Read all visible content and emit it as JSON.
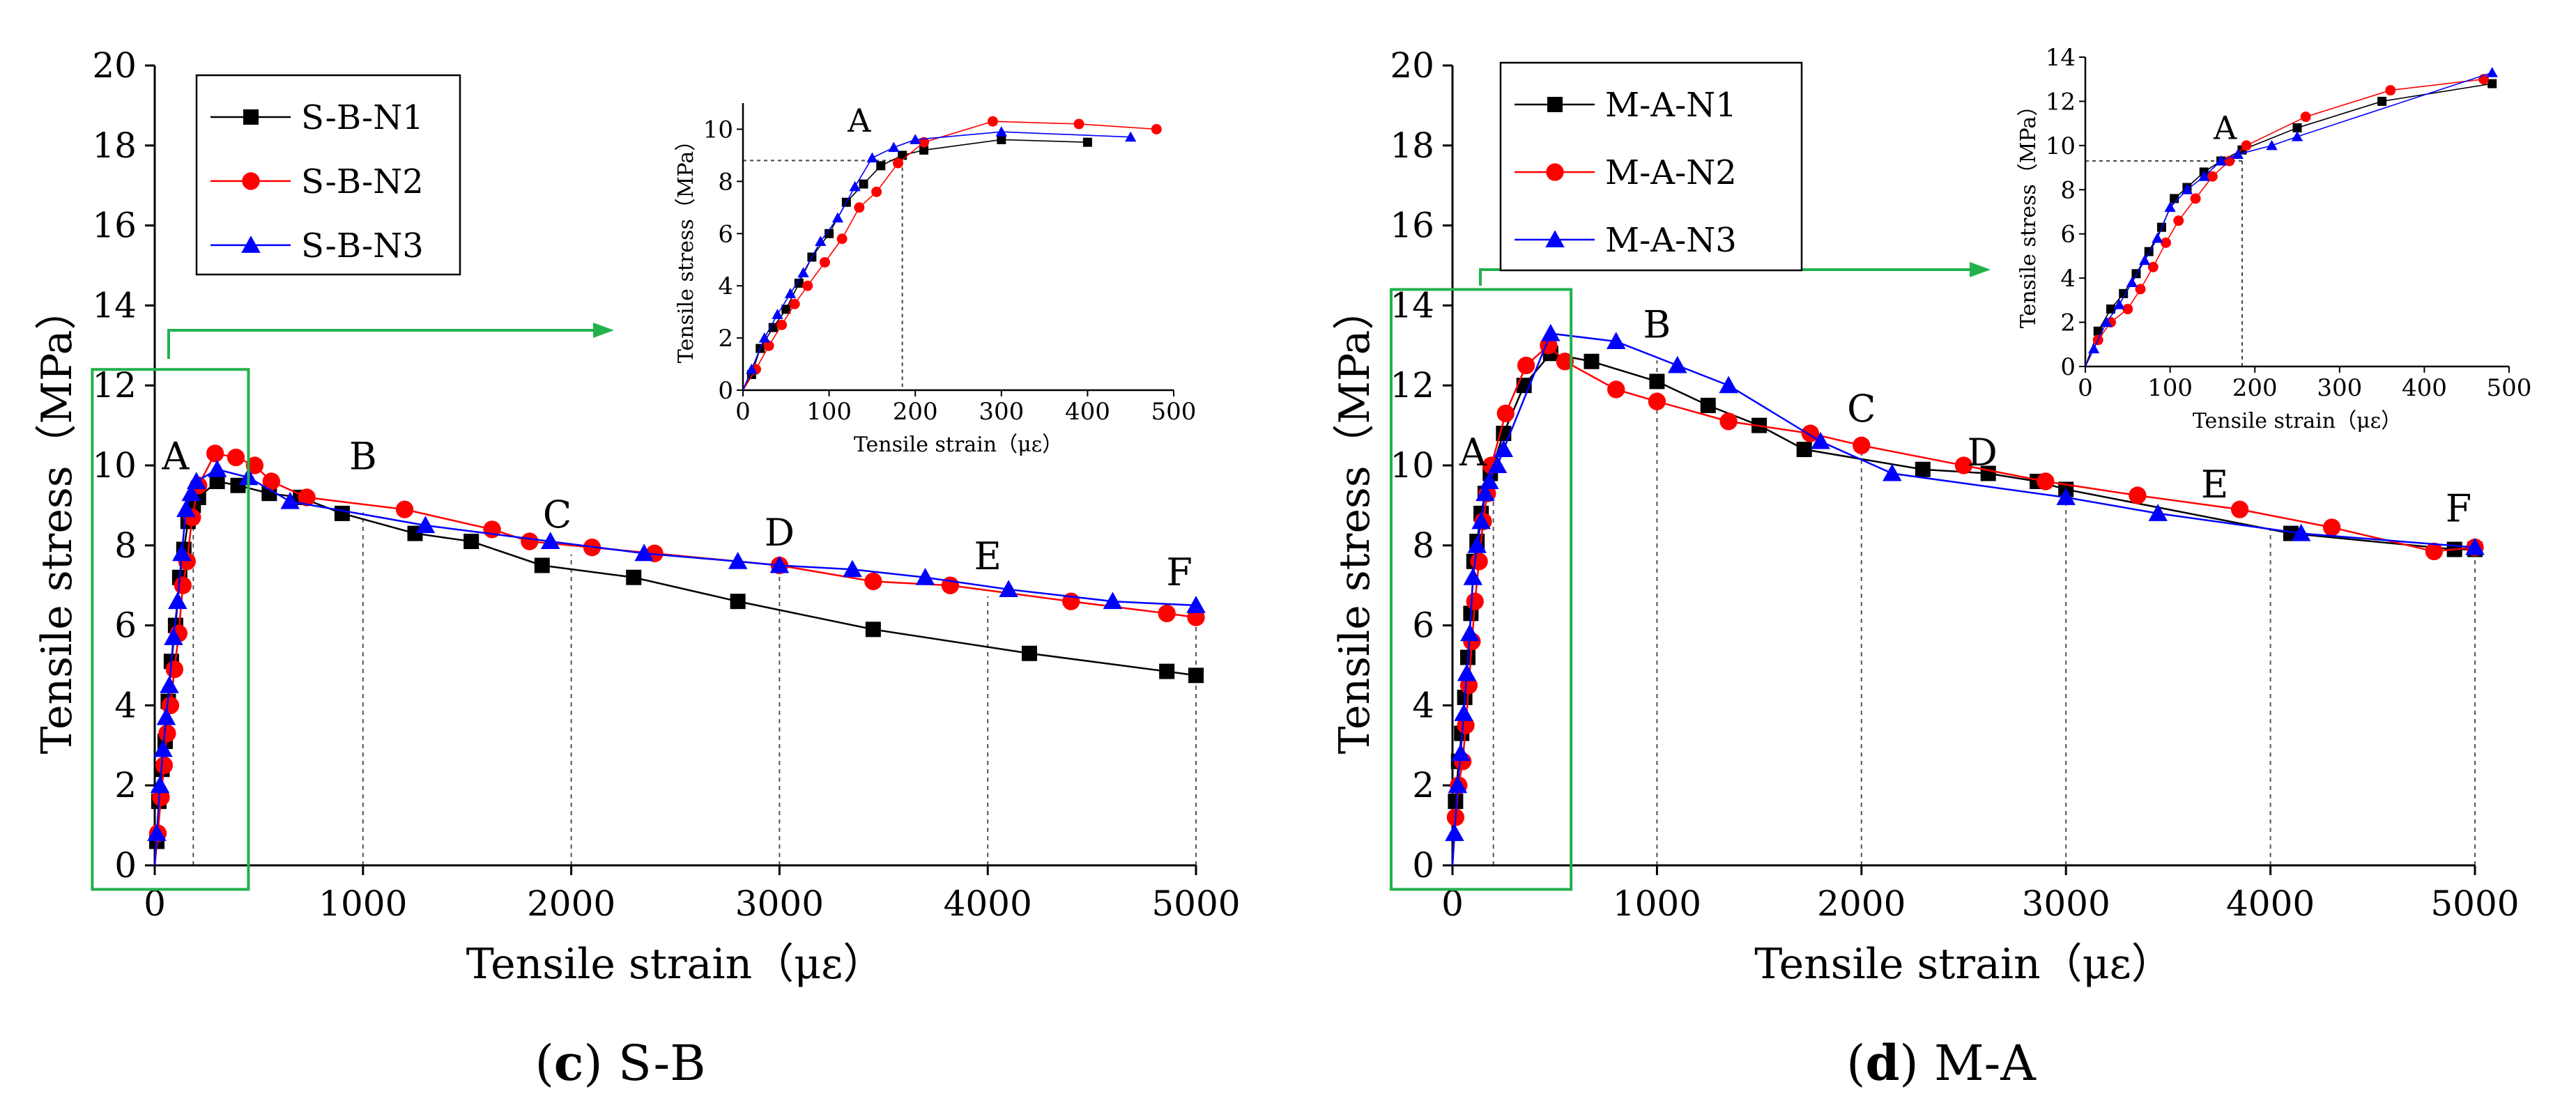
{
  "chart_data": [
    {
      "id": "c",
      "type": "line",
      "caption": {
        "letter": "c",
        "text": ") S-B"
      },
      "xlabel": "Tensile strain（με）",
      "ylabel": "Tensile stress（MPa）",
      "xlim": [
        0,
        5000
      ],
      "ylim": [
        0,
        20
      ],
      "xticks": [
        0,
        1000,
        2000,
        3000,
        4000,
        5000
      ],
      "yticks": [
        0,
        2,
        4,
        6,
        8,
        10,
        12,
        14,
        16,
        18,
        20
      ],
      "zoom_box": {
        "x": [
          -300,
          450
        ],
        "y": [
          -0.6,
          12.4
        ]
      },
      "legend": [
        "S-B-N1",
        "S-B-N2",
        "S-B-N3"
      ],
      "series": [
        {
          "name": "S-B-N1",
          "color": "#000000",
          "marker": "square",
          "x": [
            0,
            10,
            20,
            35,
            50,
            65,
            80,
            100,
            120,
            140,
            160,
            185,
            210,
            300,
            400,
            550,
            700,
            900,
            1250,
            1520,
            1860,
            2300,
            2800,
            3450,
            4200,
            4860,
            5000
          ],
          "y": [
            0,
            0.6,
            1.6,
            2.4,
            3.1,
            4.1,
            5.1,
            6.0,
            7.2,
            7.9,
            8.6,
            9.0,
            9.2,
            9.6,
            9.5,
            9.3,
            9.2,
            8.8,
            8.3,
            8.1,
            7.5,
            7.2,
            6.6,
            5.9,
            5.3,
            4.85,
            4.75
          ]
        },
        {
          "name": "S-B-N2",
          "color": "#ff0000",
          "marker": "circle",
          "x": [
            0,
            15,
            30,
            45,
            60,
            75,
            95,
            115,
            135,
            155,
            180,
            210,
            290,
            390,
            480,
            560,
            730,
            1200,
            1620,
            1800,
            2100,
            2400,
            3000,
            3450,
            3820,
            4400,
            4860,
            5000
          ],
          "y": [
            0,
            0.8,
            1.7,
            2.5,
            3.3,
            4.0,
            4.9,
            5.8,
            7.0,
            7.6,
            8.7,
            9.5,
            10.3,
            10.2,
            10.0,
            9.6,
            9.2,
            8.9,
            8.4,
            8.1,
            7.95,
            7.8,
            7.5,
            7.1,
            7.0,
            6.6,
            6.3,
            6.2
          ]
        },
        {
          "name": "S-B-N3",
          "color": "#0000ff",
          "marker": "triangle",
          "x": [
            0,
            10,
            25,
            40,
            55,
            70,
            90,
            110,
            130,
            150,
            175,
            200,
            300,
            450,
            650,
            1300,
            1900,
            2350,
            2800,
            3000,
            3350,
            3700,
            4100,
            4600,
            5000
          ],
          "y": [
            0,
            0.8,
            2.0,
            2.9,
            3.7,
            4.5,
            5.7,
            6.6,
            7.8,
            8.9,
            9.3,
            9.6,
            9.9,
            9.7,
            9.1,
            8.5,
            8.1,
            7.8,
            7.6,
            7.5,
            7.4,
            7.2,
            6.9,
            6.6,
            6.5
          ]
        }
      ],
      "annotations": [
        {
          "label": "A",
          "x": 100,
          "y": 9.6,
          "dy": 0.3,
          "dx": 0,
          "vline": 185
        },
        {
          "label": "B",
          "x": 1000,
          "y": 9.0,
          "dy": 0.9,
          "dx": 0,
          "vline": 1000
        },
        {
          "label": "C",
          "x": 2000,
          "y": 7.95,
          "dy": 0.5,
          "dx": -20,
          "vline": 2000
        },
        {
          "label": "D",
          "x": 3000,
          "y": 7.5,
          "dy": 0.5,
          "dx": 0,
          "vline": 3000
        },
        {
          "label": "E",
          "x": 4000,
          "y": 6.9,
          "dy": 0.5,
          "dx": 0,
          "vline": 4000
        },
        {
          "label": "F",
          "x": 4920,
          "y": 6.4,
          "dy": 0.6,
          "dx": 0,
          "vline": 5000
        }
      ],
      "inset": {
        "xlabel": "Tensile strain（με）",
        "ylabel": "Tensile stress（MPa）",
        "xlim": [
          0,
          500
        ],
        "ylim": [
          0,
          11
        ],
        "xticks": [
          0,
          100,
          200,
          300,
          400,
          500
        ],
        "yticks": [
          0,
          2,
          4,
          6,
          8,
          10
        ],
        "point_label": "A",
        "ref_x": 185,
        "ref_y": 8.8,
        "label_x": 135,
        "label_y": 9.9
      }
    },
    {
      "id": "d",
      "type": "line",
      "caption": {
        "letter": "d",
        "text": ") M-A"
      },
      "xlabel": "Tensile strain（με）",
      "ylabel": "Tensile stress（MPa）",
      "xlim": [
        0,
        5000
      ],
      "ylim": [
        0,
        20
      ],
      "xticks": [
        0,
        1000,
        2000,
        3000,
        4000,
        5000
      ],
      "yticks": [
        0,
        2,
        4,
        6,
        8,
        10,
        12,
        14,
        16,
        18,
        20
      ],
      "zoom_box": {
        "x": [
          -300,
          580
        ],
        "y": [
          -0.6,
          14.4
        ]
      },
      "legend": [
        "M-A-N1",
        "M-A-N2",
        "M-A-N3"
      ],
      "series": [
        {
          "name": "M-A-N1",
          "color": "#000000",
          "marker": "square",
          "x": [
            0,
            15,
            30,
            45,
            60,
            75,
            90,
            105,
            120,
            140,
            160,
            185,
            250,
            350,
            480,
            680,
            1000,
            1250,
            1500,
            1720,
            2300,
            2620,
            2860,
            3000,
            4100,
            4900,
            5000
          ],
          "y": [
            0,
            1.6,
            2.6,
            3.3,
            4.2,
            5.2,
            6.3,
            7.6,
            8.1,
            8.8,
            9.3,
            9.8,
            10.8,
            12.0,
            12.8,
            12.6,
            12.1,
            11.5,
            11.0,
            10.4,
            9.9,
            9.8,
            9.6,
            9.4,
            8.3,
            7.9,
            7.9
          ]
        },
        {
          "name": "M-A-N2",
          "color": "#ff0000",
          "marker": "circle",
          "x": [
            0,
            15,
            30,
            50,
            65,
            80,
            95,
            110,
            130,
            150,
            170,
            190,
            260,
            360,
            470,
            550,
            800,
            1000,
            1350,
            1750,
            2000,
            2500,
            2900,
            3350,
            3850,
            4300,
            4800,
            5000
          ],
          "y": [
            0,
            1.2,
            2.0,
            2.6,
            3.5,
            4.5,
            5.6,
            6.6,
            7.6,
            8.6,
            9.3,
            10.0,
            11.3,
            12.5,
            13.0,
            12.6,
            11.9,
            11.6,
            11.1,
            10.8,
            10.5,
            10.0,
            9.6,
            9.25,
            8.9,
            8.45,
            7.85,
            7.95
          ]
        },
        {
          "name": "M-A-N3",
          "color": "#0000ff",
          "marker": "triangle",
          "x": [
            0,
            10,
            25,
            40,
            55,
            70,
            85,
            100,
            120,
            140,
            160,
            180,
            220,
            250,
            480,
            800,
            1100,
            1350,
            1800,
            2150,
            3000,
            3450,
            4150,
            5000
          ],
          "y": [
            0,
            0.8,
            2.0,
            2.8,
            3.8,
            4.8,
            5.8,
            7.2,
            8.0,
            8.6,
            9.3,
            9.6,
            10.0,
            10.4,
            13.3,
            13.1,
            12.5,
            12.0,
            10.6,
            9.8,
            9.2,
            8.8,
            8.3,
            7.95
          ]
        }
      ],
      "annotations": [
        {
          "label": "A",
          "x": 100,
          "y": 9.7,
          "dy": 0.3,
          "dx": 0,
          "vline": 200
        },
        {
          "label": "B",
          "x": 1000,
          "y": 12.8,
          "dy": 0.4,
          "dx": 0,
          "vline": 1000
        },
        {
          "label": "C",
          "x": 2000,
          "y": 10.5,
          "dy": 0.6,
          "dx": 0,
          "vline": 2000
        },
        {
          "label": "D",
          "x": 3000,
          "y": 9.5,
          "dy": 0.5,
          "dx": -120,
          "vline": 3000
        },
        {
          "label": "E",
          "x": 4000,
          "y": 8.6,
          "dy": 0.6,
          "dx": -80,
          "vline": 4000
        },
        {
          "label": "F",
          "x": 4920,
          "y": 8.1,
          "dy": 0.5,
          "dx": 0,
          "vline": 5000
        }
      ],
      "inset": {
        "xlabel": "Tensile strain（με）",
        "ylabel": "Tensile stress（MPa）",
        "xlim": [
          0,
          500
        ],
        "ylim": [
          0,
          14
        ],
        "xticks": [
          0,
          100,
          200,
          300,
          400,
          500
        ],
        "yticks": [
          0,
          2,
          4,
          6,
          8,
          10,
          12,
          14
        ],
        "point_label": "A",
        "ref_x": 185,
        "ref_y": 9.3,
        "label_x": 165,
        "label_y": 10.3
      }
    }
  ]
}
